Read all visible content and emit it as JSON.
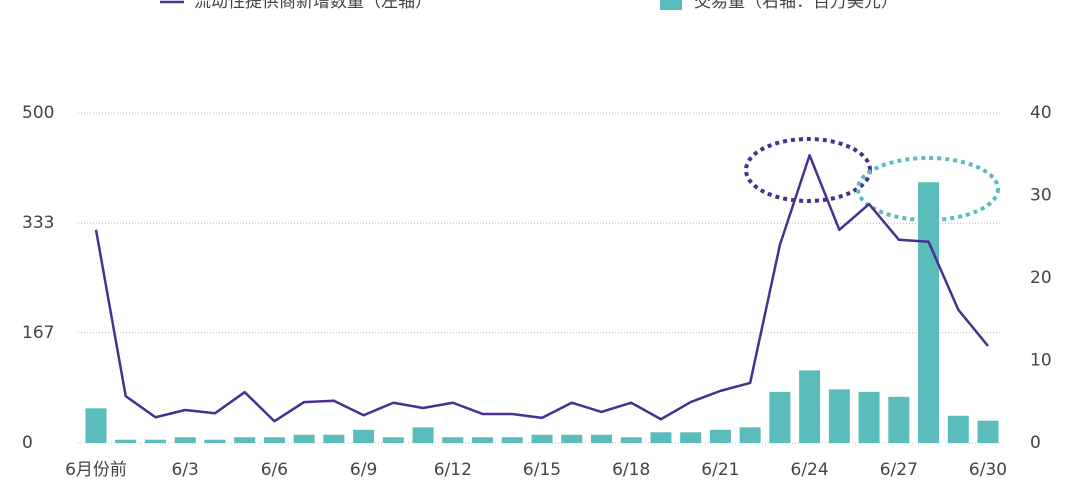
{
  "chart_data": {
    "type": "combo",
    "categories": [
      "6月份前",
      null,
      null,
      "6/3",
      null,
      null,
      "6/6",
      null,
      null,
      "6/9",
      null,
      null,
      "6/12",
      null,
      null,
      "6/15",
      null,
      null,
      "6/18",
      null,
      null,
      "6/21",
      null,
      null,
      "6/24",
      null,
      null,
      "6/27",
      null,
      null,
      "6/30"
    ],
    "series": [
      {
        "name": "流动性提供商新增数量（左轴）",
        "type": "line",
        "axis": "y",
        "color": "#4a2f8f",
        "values": [
          323,
          71,
          39,
          50,
          45,
          77,
          33,
          62,
          64,
          42,
          61,
          53,
          61,
          44,
          44,
          38,
          61,
          47,
          61,
          36,
          62,
          79,
          91,
          300,
          436,
          323,
          362,
          308,
          305,
          202,
          147
        ]
      },
      {
        "name": "交易量（右轴：百万美元）",
        "type": "bar",
        "axis": "y2",
        "color": "#5bbcbc",
        "values": [
          4.2,
          0.4,
          0.4,
          0.7,
          0.4,
          0.7,
          0.7,
          1.0,
          1.0,
          1.6,
          0.7,
          1.9,
          0.7,
          0.7,
          0.7,
          1.0,
          1.0,
          1.0,
          0.7,
          1.3,
          1.3,
          1.6,
          1.9,
          6.2,
          8.8,
          6.5,
          6.2,
          5.6,
          31.6,
          3.3,
          2.7
        ]
      }
    ],
    "ylim": [
      0,
      500
    ],
    "yticks": [
      0,
      167,
      333,
      500
    ],
    "y2lim": [
      0,
      40
    ],
    "y2ticks": [
      0,
      10,
      20,
      30,
      40
    ],
    "grid": true
  }
}
